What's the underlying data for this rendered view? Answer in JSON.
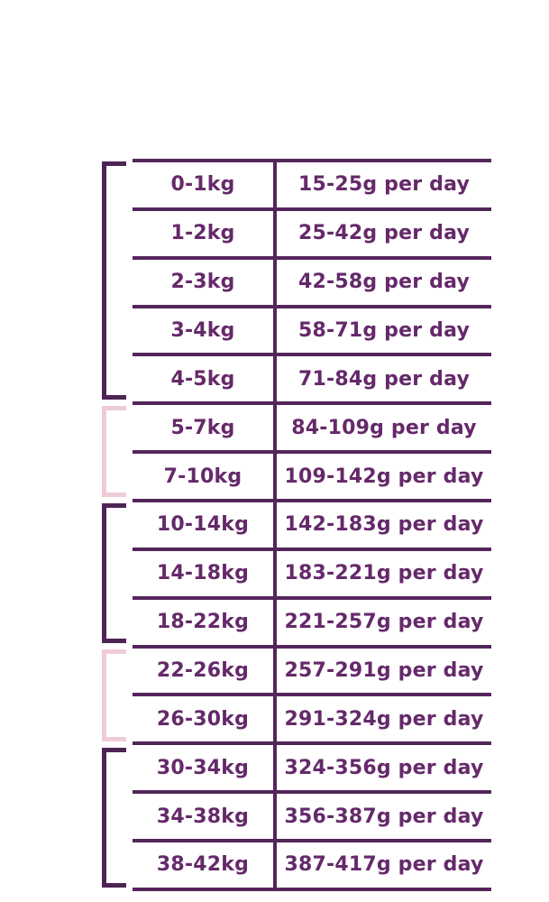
{
  "colors": {
    "background": "#ffffff",
    "line": "#53265a",
    "text": "#65296a",
    "bracket_dark": "#4e2455",
    "bracket_pink": "#f0cbd9"
  },
  "table": {
    "columns": [
      "weight-range",
      "daily-amount"
    ],
    "rows": [
      {
        "weight": "0-1kg",
        "amount": "15-25g per day"
      },
      {
        "weight": "1-2kg",
        "amount": "25-42g per day"
      },
      {
        "weight": "2-3kg",
        "amount": "42-58g per day"
      },
      {
        "weight": "3-4kg",
        "amount": "58-71g per day"
      },
      {
        "weight": "4-5kg",
        "amount": "71-84g per day"
      },
      {
        "weight": "5-7kg",
        "amount": "84-109g per day"
      },
      {
        "weight": "7-10kg",
        "amount": "109-142g per day"
      },
      {
        "weight": "10-14kg",
        "amount": "142-183g per day"
      },
      {
        "weight": "14-18kg",
        "amount": "183-221g per day"
      },
      {
        "weight": "18-22kg",
        "amount": "221-257g per day"
      },
      {
        "weight": "22-26kg",
        "amount": "257-291g per day"
      },
      {
        "weight": "26-30kg",
        "amount": "291-324g per day"
      },
      {
        "weight": "30-34kg",
        "amount": "324-356g per day"
      },
      {
        "weight": "34-38kg",
        "amount": "356-387g per day"
      },
      {
        "weight": "38-42kg",
        "amount": "387-417g per day"
      }
    ]
  },
  "groups": [
    {
      "start": 0,
      "count": 5,
      "tone": "dark"
    },
    {
      "start": 5,
      "count": 2,
      "tone": "pink"
    },
    {
      "start": 7,
      "count": 3,
      "tone": "dark"
    },
    {
      "start": 10,
      "count": 2,
      "tone": "pink"
    },
    {
      "start": 12,
      "count": 3,
      "tone": "dark"
    }
  ]
}
